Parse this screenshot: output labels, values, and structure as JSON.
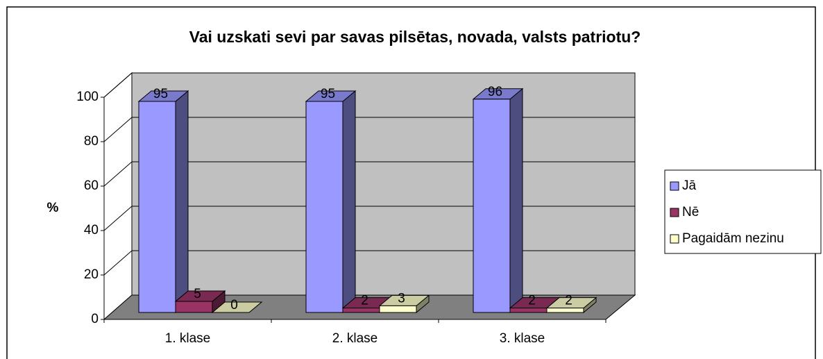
{
  "chart_data": {
    "type": "bar3d",
    "title": "Vai uzskati sevi par savas pilsētas, novada, valsts patriotu?",
    "y_label": "%",
    "categories": [
      "1. klase",
      "2. klase",
      "3. klase"
    ],
    "series": [
      {
        "name": "Jā",
        "color": "#9999ff",
        "values": [
          95,
          95,
          96
        ]
      },
      {
        "name": "Nē",
        "color": "#993366",
        "values": [
          5,
          2,
          2
        ]
      },
      {
        "name": "Pagaidām nezinu",
        "color": "#ffffcc",
        "values": [
          0,
          3,
          2
        ]
      }
    ],
    "ylim": [
      0,
      100
    ],
    "yticks": [
      0,
      20,
      40,
      60,
      80,
      100
    ],
    "grid": true,
    "legend": "right"
  }
}
